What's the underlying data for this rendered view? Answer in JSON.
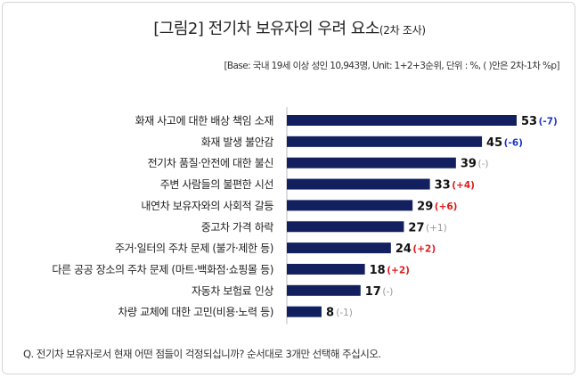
{
  "title": {
    "main": "[그림2] 전기차 보유자의 우려 요소",
    "sub": "(2차 조사)"
  },
  "base_note": "[Base: 국내 19세 이상 성인 10,943명, Unit: 1+2+3순위, 단위 : %, ( )안은 2차-1차 %p]",
  "question": "Q. 전기차 보유자로서 현재 어떤 점들이 걱정되십니까? 순서대로 3개만 선택해 주십시오.",
  "colors": {
    "bar": "#12205f",
    "positive": "#e01b1b",
    "negative": "#1f33c6",
    "neutral": "#999999"
  },
  "chart_data": {
    "type": "bar",
    "orientation": "horizontal",
    "categories": [
      "화재 사고에 대한 배상 책임 소재",
      "화재 발생 불안감",
      "전기차 품질·안전에 대한 불신",
      "주변 사람들의 불편한 시선",
      "내연차 보유자와의 사회적 갈등",
      "중고차 가격 하락",
      "주거·일터의 주차 문제 (불가·제한 등)",
      "다른 공공 장소의 주차 문제 (마트·백화점·쇼핑몰 등)",
      "자동차 보험료 인상",
      "차량 교체에 대한 고민(비용·노력 등)"
    ],
    "values": [
      53,
      45,
      39,
      33,
      29,
      27,
      24,
      18,
      17,
      8
    ],
    "changes": [
      "(-7)",
      "(-6)",
      "(-)",
      "(+4)",
      "(+6)",
      "(+1)",
      "(+2)",
      "(+2)",
      "(-)",
      "(-1)"
    ],
    "change_type": [
      "negative",
      "negative",
      "neutral",
      "positive",
      "positive",
      "neutral",
      "positive",
      "positive",
      "neutral",
      "neutral"
    ],
    "xlim": [
      0,
      53
    ]
  }
}
